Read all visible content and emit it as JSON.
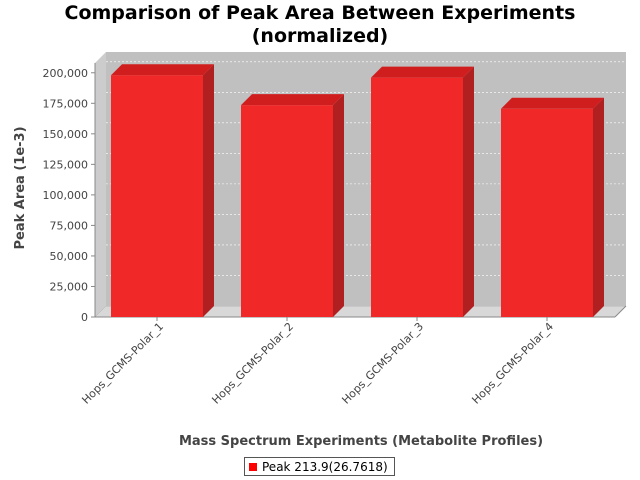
{
  "chart_data": {
    "type": "bar",
    "title_line1": "Comparison of Peak Area Between Experiments",
    "title_line2": "(normalized)",
    "xlabel": "Mass Spectrum Experiments (Metabolite Profiles)",
    "ylabel": "Peak Area (1e-3)",
    "categories": [
      "Hops_GCMS-Polar_1",
      "Hops_GCMS-Polar_2",
      "Hops_GCMS-Polar_3",
      "Hops_GCMS-Polar_4"
    ],
    "series": [
      {
        "name": "Peak 213.9(26.7618)",
        "values": [
          198000,
          173500,
          196000,
          170500
        ]
      }
    ],
    "y_ticks": [
      "0",
      "25,000",
      "50,000",
      "75,000",
      "100,000",
      "125,000",
      "150,000",
      "175,000",
      "200,000"
    ],
    "ylim": [
      0,
      208000
    ],
    "grid": true,
    "legend_position": "bottom",
    "colors": {
      "bar": "#f02828",
      "bar_top": "#d01e1e",
      "bar_side": "#b02020",
      "plot_bg": "#c0c0c0",
      "plot_floor": "#d8d8d8",
      "legend_swatch": "#ff0000"
    }
  }
}
